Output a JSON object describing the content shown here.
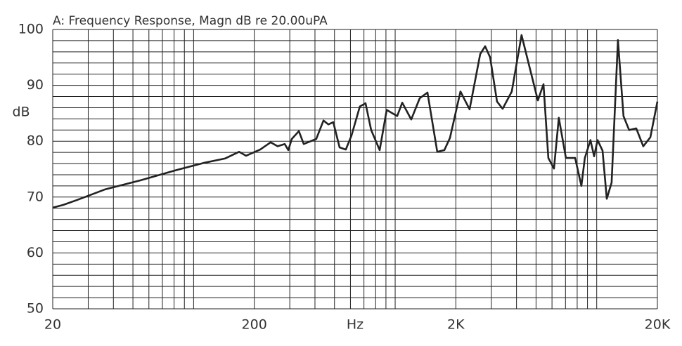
{
  "chart_data": {
    "type": "line",
    "title": "A: Frequency Response, Magn dB re 20.00uPA",
    "x_label": "Hz",
    "y_label": "dB",
    "x_scale": "log",
    "xlim": [
      20,
      20000
    ],
    "xticks": [
      20,
      200,
      {
        "value": 2000,
        "label": "2K"
      },
      {
        "value": 20000,
        "label": "20K"
      }
    ],
    "x_minor_ticks": [
      30,
      40,
      50,
      60,
      70,
      80,
      90,
      100,
      300,
      400,
      500,
      600,
      700,
      800,
      900,
      1000,
      3000,
      4000,
      5000,
      6000,
      7000,
      8000,
      9000,
      10000
    ],
    "ylim": [
      50,
      100
    ],
    "yticks": [
      50,
      60,
      70,
      80,
      90,
      100
    ],
    "y_minor_ticks": [
      52,
      54,
      56,
      58,
      62,
      64,
      66,
      68,
      72,
      74,
      76,
      78,
      82,
      84,
      86,
      88,
      92,
      94,
      96,
      98
    ],
    "grid": true,
    "color": "#222222",
    "x": [
      20,
      22.6,
      26.5,
      36.5,
      54.6,
      81.5,
      112,
      143,
      168,
      182,
      214,
      241,
      261,
      283,
      295,
      307,
      333,
      352,
      406,
      441,
      466,
      493,
      530,
      569,
      607,
      668,
      713,
      760,
      838,
      908,
      1023,
      1084,
      1202,
      1324,
      1446,
      1618,
      1754,
      1871,
      2108,
      2340,
      2642,
      2794,
      2958,
      3202,
      3414,
      3790,
      4238,
      5106,
      5446,
      5754,
      6138,
      6486,
      7032,
      7816,
      8396,
      8730,
      9312,
      9706,
      10094,
      10692,
      11220,
      11860,
      12740,
      13580,
      14480,
      15700,
      17020,
      18460,
      20000
    ],
    "values": [
      68.1,
      68.6,
      69.5,
      71.4,
      73.0,
      74.8,
      76.1,
      76.9,
      78.1,
      77.4,
      78.5,
      79.8,
      79.1,
      79.5,
      78.4,
      80.4,
      81.8,
      79.5,
      80.4,
      83.7,
      83.0,
      83.4,
      78.9,
      78.5,
      81.0,
      86.2,
      86.8,
      82.0,
      78.4,
      85.6,
      84.5,
      86.9,
      83.9,
      87.7,
      88.7,
      78.1,
      78.4,
      80.6,
      88.9,
      85.7,
      95.6,
      97.0,
      95.0,
      87.1,
      85.8,
      88.9,
      99.0,
      87.3,
      90.2,
      77.0,
      75.1,
      84.2,
      77.0,
      77.0,
      72.0,
      77.0,
      80.2,
      77.3,
      80.2,
      78.3,
      69.7,
      72.6,
      98.1,
      84.5,
      82.0,
      82.3,
      79.1,
      80.7,
      87.1
    ]
  }
}
